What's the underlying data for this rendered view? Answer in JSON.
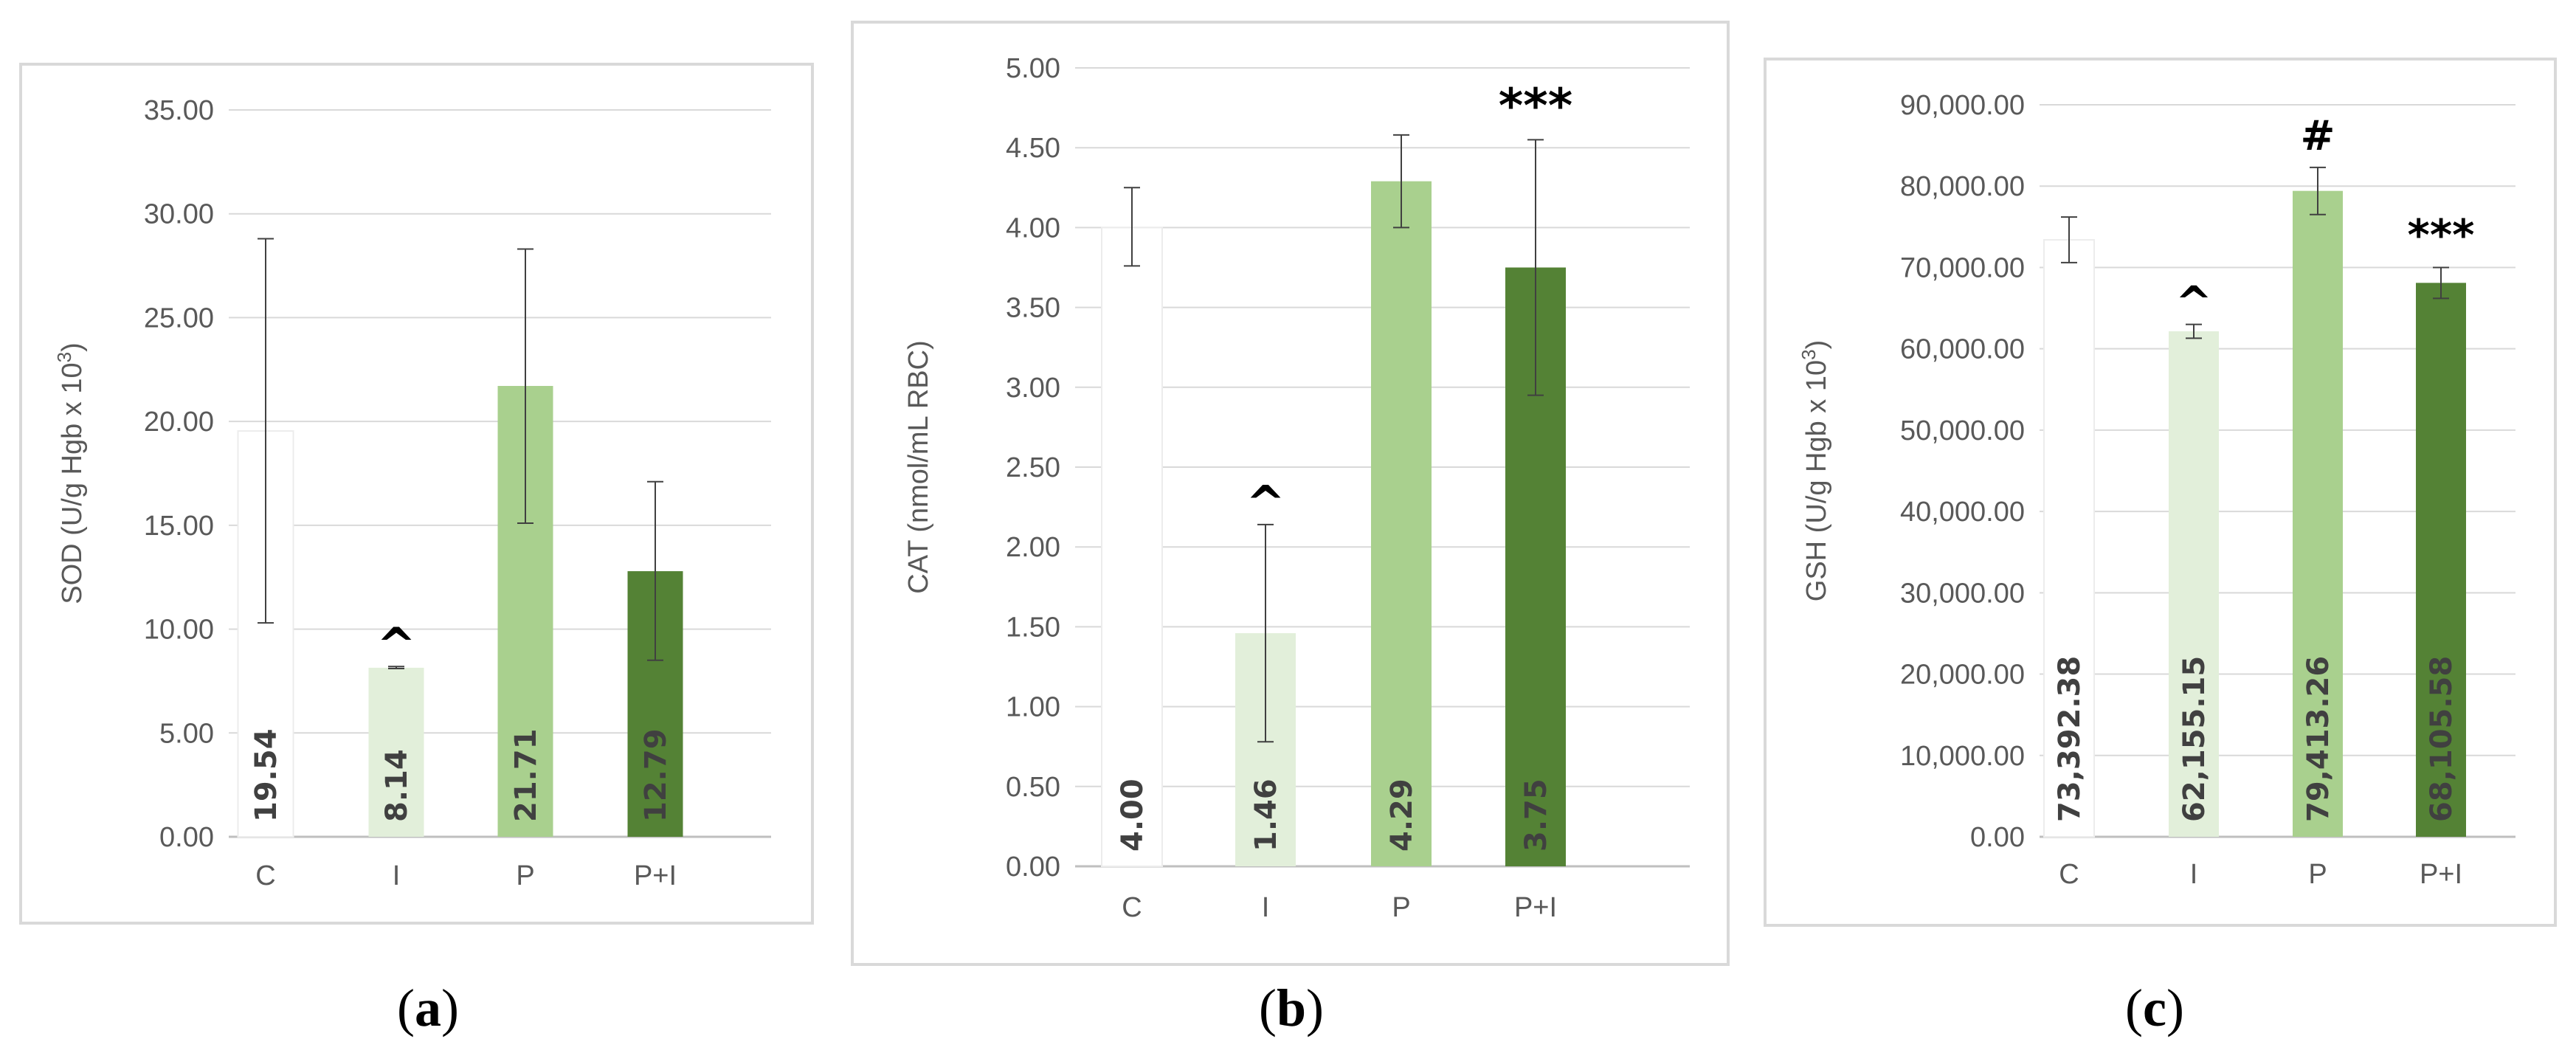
{
  "chart_data": [
    {
      "type": "bar",
      "panel_label": "a",
      "ylabel": "SOD (U/g Hgb x 10",
      "ylabel_sup": "3",
      "ylabel_end": ")",
      "categories": [
        "C",
        "I",
        "P",
        "P+I"
      ],
      "values": [
        19.54,
        8.14,
        21.71,
        12.79
      ],
      "value_labels": [
        "19.54",
        "8.14",
        "21.71",
        "12.79"
      ],
      "error_low": [
        10.3,
        8.1,
        15.1,
        8.5
      ],
      "error_high": [
        28.8,
        8.2,
        28.3,
        17.1
      ],
      "annotations": [
        "",
        "^",
        "",
        ""
      ],
      "ylim": [
        0,
        35
      ],
      "yticks": [
        "0.00",
        "5.00",
        "10.00",
        "15.00",
        "20.00",
        "25.00",
        "30.00",
        "35.00"
      ],
      "colors": [
        "#ffffff",
        "#e2efda",
        "#a9d08e",
        "#548235"
      ],
      "grid": true
    },
    {
      "type": "bar",
      "panel_label": "b",
      "ylabel": "CAT (nmol/mL RBC)",
      "ylabel_sup": "",
      "ylabel_end": "",
      "categories": [
        "C",
        "I",
        "P",
        "P+I"
      ],
      "values": [
        4.0,
        1.46,
        4.29,
        3.75
      ],
      "value_labels": [
        "4.00",
        "1.46",
        "4.29",
        "3.75"
      ],
      "error_low": [
        3.76,
        0.78,
        4.0,
        2.95
      ],
      "error_high": [
        4.25,
        2.14,
        4.58,
        4.55
      ],
      "annotations": [
        "",
        "^",
        "",
        "***"
      ],
      "ylim": [
        0,
        5
      ],
      "yticks": [
        "0.00",
        "0.50",
        "1.00",
        "1.50",
        "2.00",
        "2.50",
        "3.00",
        "3.50",
        "4.00",
        "4.50",
        "5.00"
      ],
      "colors": [
        "#ffffff",
        "#e2efda",
        "#a9d08e",
        "#548235"
      ],
      "grid": true
    },
    {
      "type": "bar",
      "panel_label": "c",
      "ylabel": "GSH (U/g Hgb x 10",
      "ylabel_sup": "3",
      "ylabel_end": ")",
      "categories": [
        "C",
        "I",
        "P",
        "P+I"
      ],
      "values": [
        73392.38,
        62155.15,
        79413.26,
        68105.58
      ],
      "value_labels": [
        "73,392.38",
        "62,155.15",
        "79,413.26",
        "68,105.58"
      ],
      "error_low": [
        70600,
        61300,
        76500,
        66200
      ],
      "error_high": [
        76200,
        63000,
        82300,
        70000
      ],
      "annotations": [
        "",
        "^",
        "#",
        "***"
      ],
      "ylim": [
        0,
        90000
      ],
      "yticks": [
        "0.00",
        "10,000.00",
        "20,000.00",
        "30,000.00",
        "40,000.00",
        "50,000.00",
        "60,000.00",
        "70,000.00",
        "80,000.00",
        "90,000.00"
      ],
      "colors": [
        "#ffffff",
        "#e2efda",
        "#a9d08e",
        "#548235"
      ],
      "grid": true
    }
  ]
}
